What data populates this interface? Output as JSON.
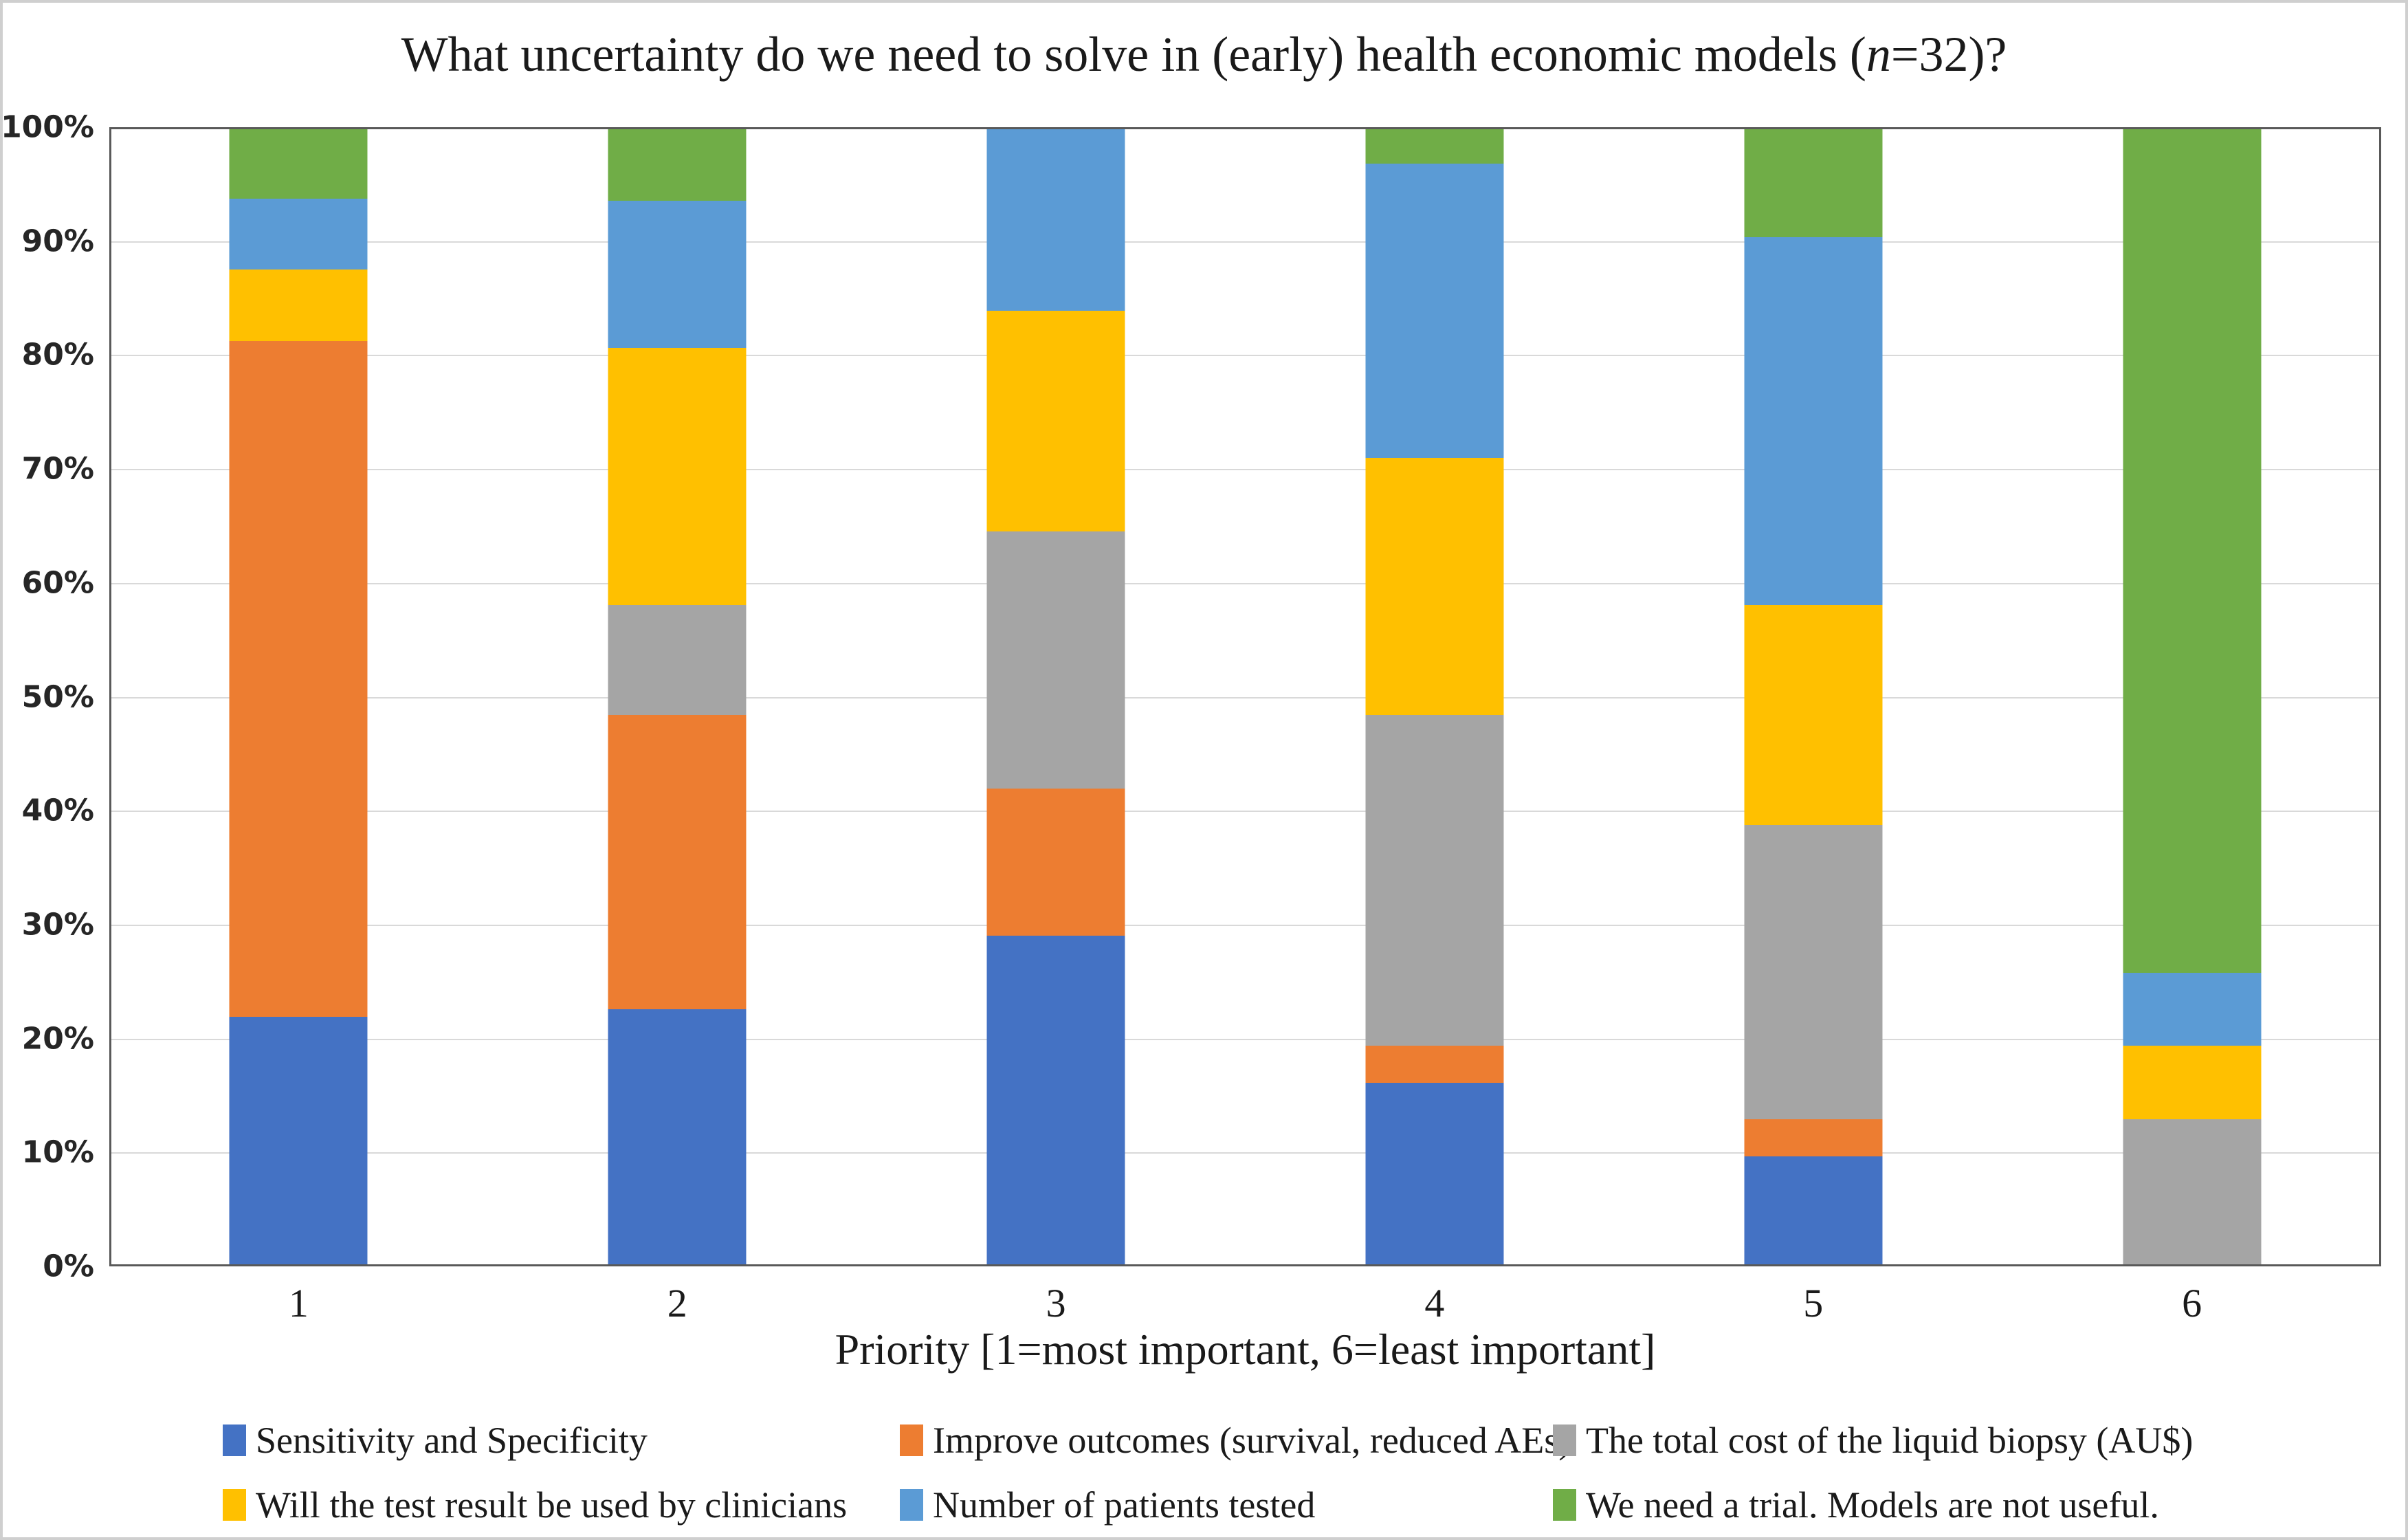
{
  "title": {
    "pre": "What uncertainty do we need to solve in (early) health economic models (",
    "italic": "n",
    "post": "=32)?"
  },
  "colors": {
    "axis": "#595959",
    "gridline": "#d9d9d9",
    "tick_text": "#262626"
  },
  "chart_data": {
    "type": "bar",
    "subtype": "100%-stacked-column",
    "title": "What uncertainty do we need to solve in (early) health economic models (n=32)?",
    "xlabel": "Priority [1=most important, 6=least important]",
    "ylabel": "",
    "ylim": [
      0,
      100
    ],
    "grid": true,
    "legend_position": "bottom",
    "categories": [
      "1",
      "2",
      "3",
      "4",
      "5",
      "6"
    ],
    "yticks": [
      "0%",
      "10%",
      "20%",
      "30%",
      "40%",
      "50%",
      "60%",
      "70%",
      "80%",
      "90%",
      "100%"
    ],
    "value_unit": "percent of respondents",
    "series": [
      {
        "name": "Sensitivity and Specificity",
        "color": "#4472C4",
        "values": [
          21.88,
          22.58,
          29.03,
          16.13,
          9.68,
          0.0
        ]
      },
      {
        "name": "Improve outcomes (survival, reduced AEs)",
        "color": "#ED7D31",
        "values": [
          59.37,
          25.81,
          12.9,
          3.23,
          3.23,
          0.0
        ]
      },
      {
        "name": "The total cost of the liquid biopsy (AU$)",
        "color": "#A5A5A5",
        "values": [
          0.0,
          9.68,
          22.58,
          29.03,
          25.81,
          12.9
        ]
      },
      {
        "name": "Will the test result be used by clinicians",
        "color": "#FFC000",
        "values": [
          6.25,
          22.58,
          19.35,
          22.58,
          19.35,
          6.45
        ]
      },
      {
        "name": "Number of patients tested",
        "color": "#5B9BD5",
        "values": [
          6.25,
          12.9,
          16.13,
          25.81,
          32.26,
          6.45
        ]
      },
      {
        "name": "We need a trial. Models are not useful.",
        "color": "#70AD47",
        "values": [
          6.25,
          6.45,
          0.0,
          3.23,
          9.68,
          74.19
        ]
      }
    ]
  }
}
